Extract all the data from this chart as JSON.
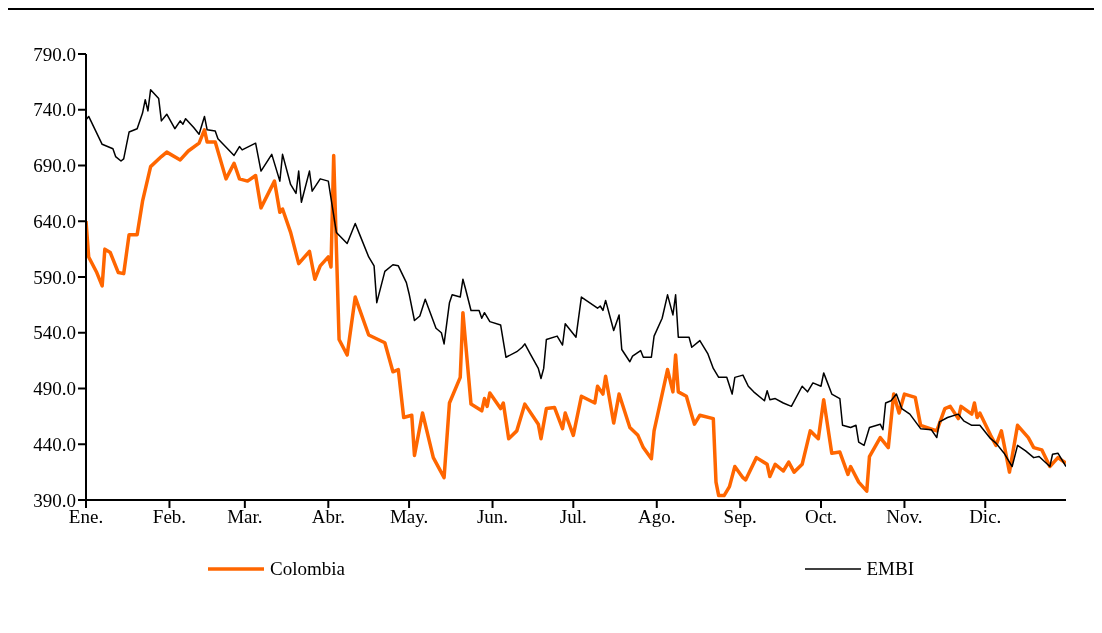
{
  "chart_data": {
    "type": "line",
    "xlim": [
      "--01-01",
      "--12-31"
    ],
    "xticks": [
      {
        "value": "--01-01",
        "label": "Ene."
      },
      {
        "value": "--02-01",
        "label": "Feb."
      },
      {
        "value": "--03-01",
        "label": "Mar."
      },
      {
        "value": "--04-01",
        "label": "Abr."
      },
      {
        "value": "--05-01",
        "label": "May."
      },
      {
        "value": "--06-01",
        "label": "Jun."
      },
      {
        "value": "--07-01",
        "label": "Jul."
      },
      {
        "value": "--08-01",
        "label": "Ago."
      },
      {
        "value": "--09-01",
        "label": "Sep."
      },
      {
        "value": "--10-01",
        "label": "Oct."
      },
      {
        "value": "--11-01",
        "label": "Nov."
      },
      {
        "value": "--12-01",
        "label": "Dic."
      }
    ],
    "ylim": [
      390,
      790
    ],
    "yticks": [
      {
        "value": 390,
        "label": "390.0"
      },
      {
        "value": 440,
        "label": "440.0"
      },
      {
        "value": 490,
        "label": "490.0"
      },
      {
        "value": 540,
        "label": "540.0"
      },
      {
        "value": 590,
        "label": "590.0"
      },
      {
        "value": 640,
        "label": "640.0"
      },
      {
        "value": 690,
        "label": "690.0"
      },
      {
        "value": 740,
        "label": "740.0"
      },
      {
        "value": 790,
        "label": "790.0"
      }
    ],
    "grid": false,
    "legend": "bottom",
    "marker": "none",
    "line_style": "solid",
    "series": [
      {
        "name": "Colombia",
        "color": "#ff6600",
        "x": [
          "--01-01",
          "--01-02",
          "--01-05",
          "--01-07",
          "--01-08",
          "--01-10",
          "--01-13",
          "--01-15",
          "--01-17",
          "--01-20",
          "--01-22",
          "--01-25",
          "--01-29",
          "--01-31",
          "--02-05",
          "--02-08",
          "--02-12",
          "--02-14",
          "--02-15",
          "--02-18",
          "--02-22",
          "--02-25",
          "--02-27",
          "--03-02",
          "--03-05",
          "--03-07",
          "--03-12",
          "--03-14",
          "--03-15",
          "--03-18",
          "--03-21",
          "--03-25",
          "--03-27",
          "--03-29",
          "--04-01",
          "--04-02",
          "--04-03",
          "--04-05",
          "--04-08",
          "--04-11",
          "--04-16",
          "--04-22",
          "--04-25",
          "--04-27",
          "--04-29",
          "--05-02",
          "--05-03",
          "--05-06",
          "--05-10",
          "--05-14",
          "--05-16",
          "--05-20",
          "--05-21",
          "--05-24",
          "--05-28",
          "--05-29",
          "--05-30",
          "--05-31",
          "--06-04",
          "--06-05",
          "--06-07",
          "--06-10",
          "--06-13",
          "--06-18",
          "--06-19",
          "--06-21",
          "--06-24",
          "--06-27",
          "--06-28",
          "--07-01",
          "--07-04",
          "--07-09",
          "--07-10",
          "--07-12",
          "--07-13",
          "--07-16",
          "--07-18",
          "--07-22",
          "--07-25",
          "--07-27",
          "--07-30",
          "--07-31",
          "--08-05",
          "--08-07",
          "--08-08",
          "--08-09",
          "--08-12",
          "--08-14",
          "--08-15",
          "--08-17",
          "--08-22",
          "--08-23",
          "--08-24",
          "--08-26",
          "--08-28",
          "--08-30",
          "--09-02",
          "--09-03",
          "--09-07",
          "--09-11",
          "--09-12",
          "--09-14",
          "--09-17",
          "--09-19",
          "--09-21",
          "--09-24",
          "--09-27",
          "--09-30",
          "--10-02",
          "--10-05",
          "--10-08",
          "--10-11",
          "--10-12",
          "--10-15",
          "--10-18",
          "--10-19",
          "--10-23",
          "--10-26",
          "--10-28",
          "--10-30",
          "--11-01",
          "--11-05",
          "--11-07",
          "--11-13",
          "--11-16",
          "--11-18",
          "--11-21",
          "--11-22",
          "--11-26",
          "--11-27",
          "--11-28",
          "--11-29",
          "--12-03",
          "--12-05",
          "--12-07",
          "--12-10",
          "--12-13",
          "--12-17",
          "--12-19",
          "--12-22",
          "--12-25",
          "--12-28",
          "--12-31"
        ],
        "values": [
          640,
          608,
          594,
          582,
          615,
          612,
          594,
          593,
          628,
          628,
          658,
          689,
          698,
          702,
          695,
          703,
          710,
          722,
          711,
          711,
          678,
          692,
          678,
          676,
          681,
          652,
          676,
          648,
          651,
          630,
          602,
          613,
          588,
          600,
          608,
          599,
          699,
          534,
          520,
          572,
          538,
          531,
          505,
          507,
          464,
          466,
          430,
          468,
          428,
          410,
          477,
          500,
          558,
          476,
          470,
          481,
          474,
          486,
          472,
          477,
          445,
          452,
          476,
          458,
          445,
          472,
          473,
          454,
          468,
          448,
          483,
          477,
          492,
          485,
          501,
          459,
          485,
          455,
          448,
          437,
          427,
          452,
          507,
          487,
          520,
          487,
          483,
          466,
          458,
          466,
          463,
          406,
          394,
          394,
          402,
          420,
          410,
          408,
          428,
          422,
          411,
          422,
          416,
          424,
          415,
          422,
          452,
          445,
          480,
          432,
          433,
          413,
          420,
          406,
          398,
          429,
          446,
          437,
          485,
          468,
          485,
          482,
          457,
          452,
          472,
          474,
          463,
          474,
          467,
          477,
          464,
          468,
          448,
          439,
          452,
          415,
          457,
          446,
          437,
          435,
          420,
          428,
          423
        ]
      },
      {
        "name": "EMBI",
        "color": "#000000",
        "x": [
          "--01-01",
          "--01-02",
          "--01-07",
          "--01-11",
          "--01-12",
          "--01-14",
          "--01-15",
          "--01-16",
          "--01-17",
          "--01-20",
          "--01-22",
          "--01-23",
          "--01-24",
          "--01-25",
          "--01-28",
          "--01-29",
          "--01-31",
          "--02-03",
          "--02-05",
          "--02-06",
          "--02-07",
          "--02-10",
          "--02-12",
          "--02-14",
          "--02-15",
          "--02-18",
          "--02-19",
          "--02-25",
          "--02-27",
          "--02-28",
          "--03-05",
          "--03-07",
          "--03-11",
          "--03-14",
          "--03-15",
          "--03-18",
          "--03-20",
          "--03-21",
          "--03-22",
          "--03-25",
          "--03-26",
          "--03-29",
          "--04-01",
          "--04-04",
          "--04-08",
          "--04-11",
          "--04-13",
          "--04-16",
          "--04-18",
          "--04-19",
          "--04-22",
          "--04-25",
          "--04-27",
          "--04-30",
          "--05-01",
          "--05-03",
          "--05-05",
          "--05-07",
          "--05-11",
          "--05-13",
          "--05-14",
          "--05-16",
          "--05-17",
          "--05-20",
          "--05-21",
          "--05-22",
          "--05-24",
          "--05-27",
          "--05-28",
          "--05-29",
          "--05-31",
          "--06-04",
          "--06-06",
          "--06-10",
          "--06-12",
          "--06-13",
          "--06-15",
          "--06-18",
          "--06-19",
          "--06-20",
          "--06-21",
          "--06-25",
          "--06-27",
          "--06-28",
          "--07-02",
          "--07-04",
          "--07-10",
          "--07-11",
          "--07-12",
          "--07-13",
          "--07-16",
          "--07-18",
          "--07-19",
          "--07-22",
          "--07-23",
          "--07-26",
          "--07-27",
          "--07-30",
          "--07-31",
          "--08-03",
          "--08-05",
          "--08-07",
          "--08-08",
          "--08-09",
          "--08-13",
          "--08-14",
          "--08-17",
          "--08-20",
          "--08-22",
          "--08-24",
          "--08-27",
          "--08-29",
          "--08-30",
          "--09-02",
          "--09-04",
          "--09-06",
          "--09-10",
          "--09-11",
          "--09-12",
          "--09-14",
          "--09-17",
          "--09-20",
          "--09-24",
          "--09-26",
          "--09-28",
          "--10-01",
          "--10-02",
          "--10-05",
          "--10-08",
          "--10-09",
          "--10-12",
          "--10-14",
          "--10-15",
          "--10-17",
          "--10-19",
          "--10-23",
          "--10-24",
          "--10-25",
          "--10-27",
          "--10-29",
          "--10-31",
          "--11-03",
          "--11-07",
          "--11-11",
          "--11-13",
          "--11-14",
          "--11-17",
          "--11-21",
          "--11-23",
          "--11-26",
          "--11-29",
          "--12-03",
          "--12-05",
          "--12-08",
          "--12-11",
          "--12-13",
          "--12-16",
          "--12-19",
          "--12-21",
          "--12-25",
          "--12-26",
          "--12-28",
          "--12-31"
        ],
        "values": [
          731,
          734,
          709,
          705,
          698,
          694,
          696,
          708,
          720,
          723,
          737,
          749,
          739,
          758,
          750,
          730,
          736,
          723,
          730,
          727,
          732,
          724,
          718,
          734,
          722,
          721,
          714,
          699,
          707,
          704,
          710,
          685,
          700,
          676,
          700,
          673,
          665,
          685,
          657,
          685,
          667,
          678,
          676,
          630,
          620,
          638,
          626,
          608,
          600,
          567,
          595,
          601,
          600,
          585,
          575,
          551,
          555,
          570,
          544,
          540,
          530,
          567,
          574,
          572,
          588,
          579,
          560,
          560,
          553,
          558,
          550,
          547,
          518,
          523,
          527,
          530,
          521,
          508,
          499,
          508,
          534,
          537,
          529,
          548,
          536,
          572,
          562,
          564,
          560,
          569,
          542,
          556,
          525,
          514,
          519,
          524,
          518,
          518,
          537,
          553,
          574,
          556,
          574,
          536,
          536,
          527,
          533,
          521,
          508,
          500,
          500,
          485,
          500,
          502,
          492,
          487,
          479,
          488,
          480,
          481,
          477,
          474,
          492,
          487,
          495,
          492,
          504,
          485,
          481,
          457,
          455,
          457,
          442,
          439,
          455,
          458,
          453,
          477,
          479,
          485,
          472,
          467,
          454,
          453,
          446,
          460,
          464,
          467,
          461,
          457,
          457,
          445,
          441,
          432,
          420,
          439,
          434,
          428,
          429,
          420,
          431,
          432,
          420
        ]
      }
    ]
  }
}
